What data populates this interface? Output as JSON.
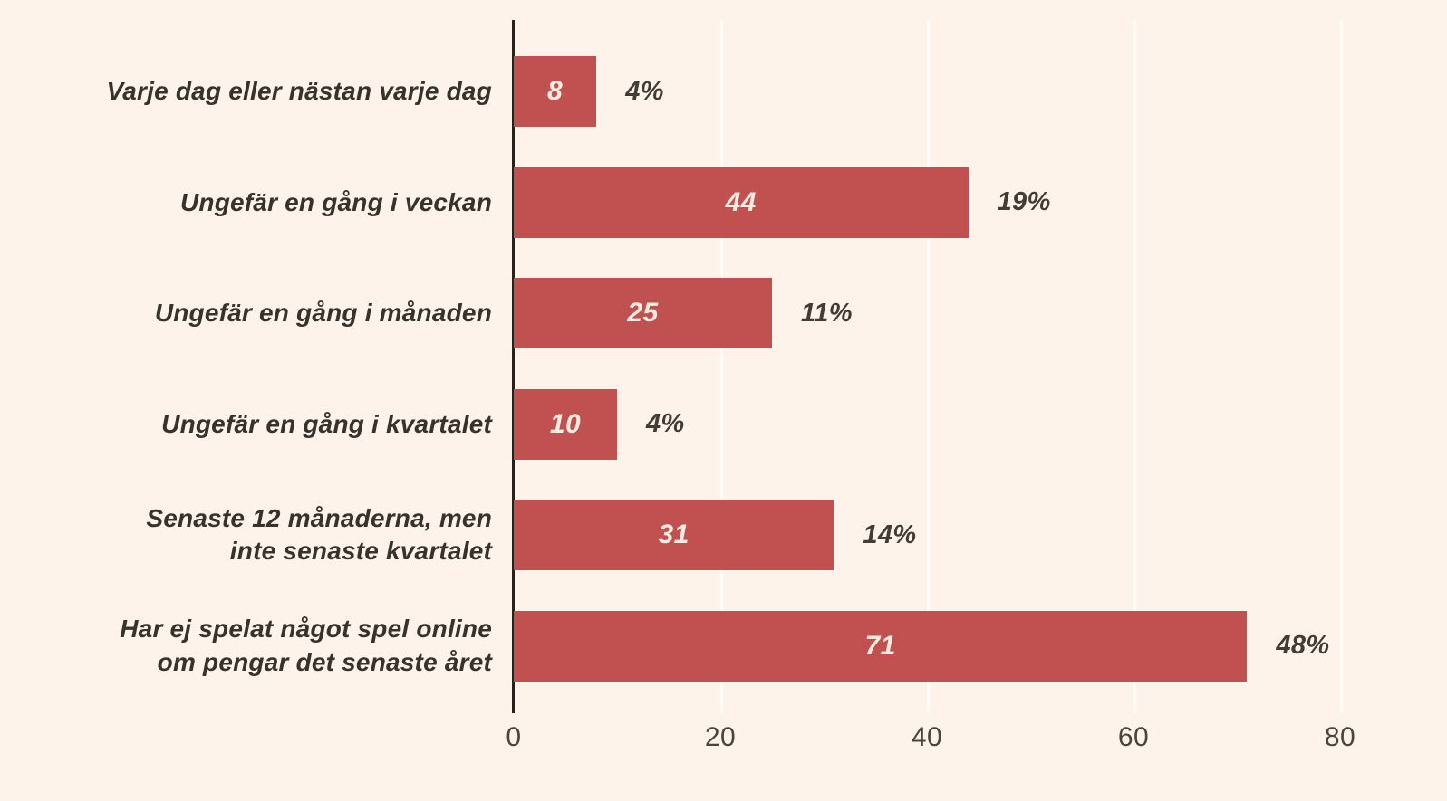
{
  "chart_data": {
    "type": "bar",
    "orientation": "horizontal",
    "title": "",
    "categories": [
      "Varje dag eller nästan varje dag",
      "Ungefär en gång i veckan",
      "Ungefär en gång i månaden",
      "Ungefär en gång i kvartalet",
      "Senaste 12 månaderna, men\ninte senaste kvartalet",
      "Har ej spelat något spel online\nom pengar det senaste året"
    ],
    "values": [
      8,
      44,
      25,
      10,
      31,
      71
    ],
    "bar_value_labels": [
      "8",
      "44",
      "25",
      "10",
      "31",
      "71"
    ],
    "percent_labels": [
      "4%",
      "19%",
      "11%",
      "4%",
      "14%",
      "48%"
    ],
    "x_ticks": [
      "0",
      "20",
      "40",
      "60",
      "80"
    ],
    "x_tick_values": [
      0,
      20,
      40,
      60,
      80
    ],
    "xlim": [
      0,
      80
    ],
    "grid": "vertical-faint",
    "legend": "none",
    "colors": {
      "background": "#fdf3ea",
      "bar": "#c05150",
      "bar_value_text": "#f8ece1",
      "category_text": "#37322c",
      "percent_text": "#423c35",
      "tick_text": "#4b443c",
      "axis_line": "#25211e",
      "gridline": "rgba(255,255,255,0.75)"
    }
  }
}
